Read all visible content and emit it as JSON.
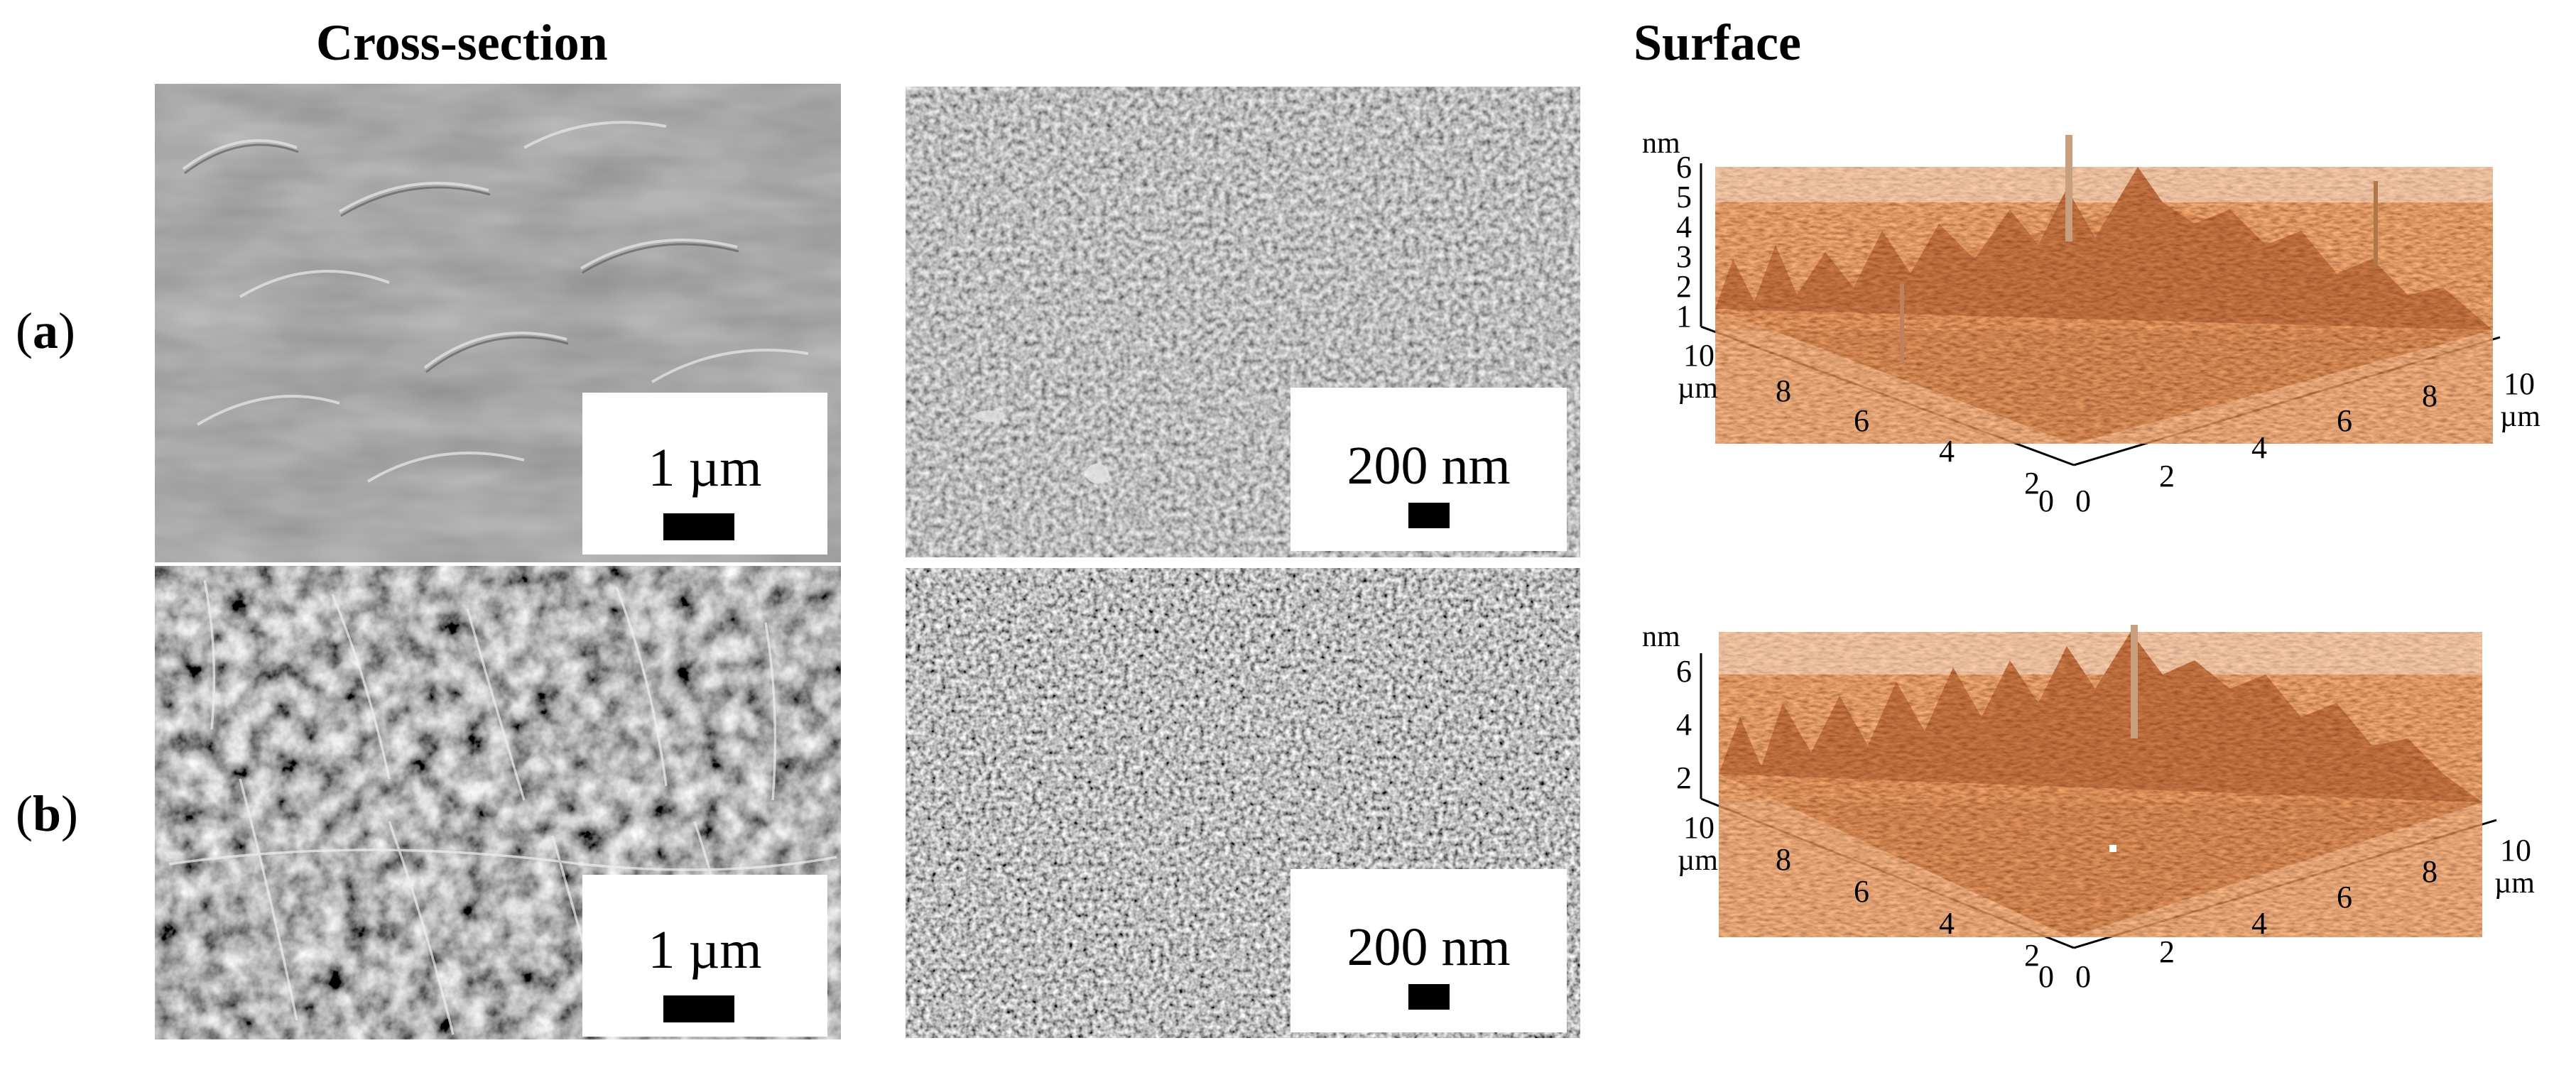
{
  "headings": {
    "cross_section": "Cross-section",
    "surface": "Surface"
  },
  "rows": [
    {
      "label_open": "(",
      "label_letter": "a",
      "label_close": ")"
    },
    {
      "label_open": "(",
      "label_letter": "b",
      "label_close": ")"
    }
  ],
  "scale_bars": {
    "a_cross_section": "1 µm",
    "a_surface_sem": "200 nm",
    "b_cross_section": "1 µm",
    "b_surface_sem": "200 nm"
  },
  "afm": {
    "a": {
      "z_unit": "nm",
      "z_ticks": [
        "6",
        "5",
        "4",
        "3",
        "2",
        "1"
      ],
      "x_ticks_left": [
        "10",
        "8",
        "6",
        "4",
        "2",
        "0"
      ],
      "x_unit_left": "µm",
      "x_ticks_right": [
        "0",
        "2",
        "4",
        "6",
        "8",
        "10"
      ],
      "x_unit_right": "µm"
    },
    "b": {
      "z_unit": "nm",
      "z_ticks": [
        "6",
        "4",
        "2"
      ],
      "x_ticks_left": [
        "10",
        "8",
        "6",
        "4",
        "2",
        "0"
      ],
      "x_unit_left": "µm",
      "x_ticks_right": [
        "0",
        "2",
        "4",
        "6",
        "8",
        "10"
      ],
      "x_unit_right": "µm"
    }
  },
  "colors": {
    "afm_surface": "#8a3510",
    "afm_highlight": "#c8723c",
    "sem_a_cross": "#8e8e8e",
    "sem_b_cross": "#5a5a5a",
    "sem_surface": "#9a9a9a"
  }
}
